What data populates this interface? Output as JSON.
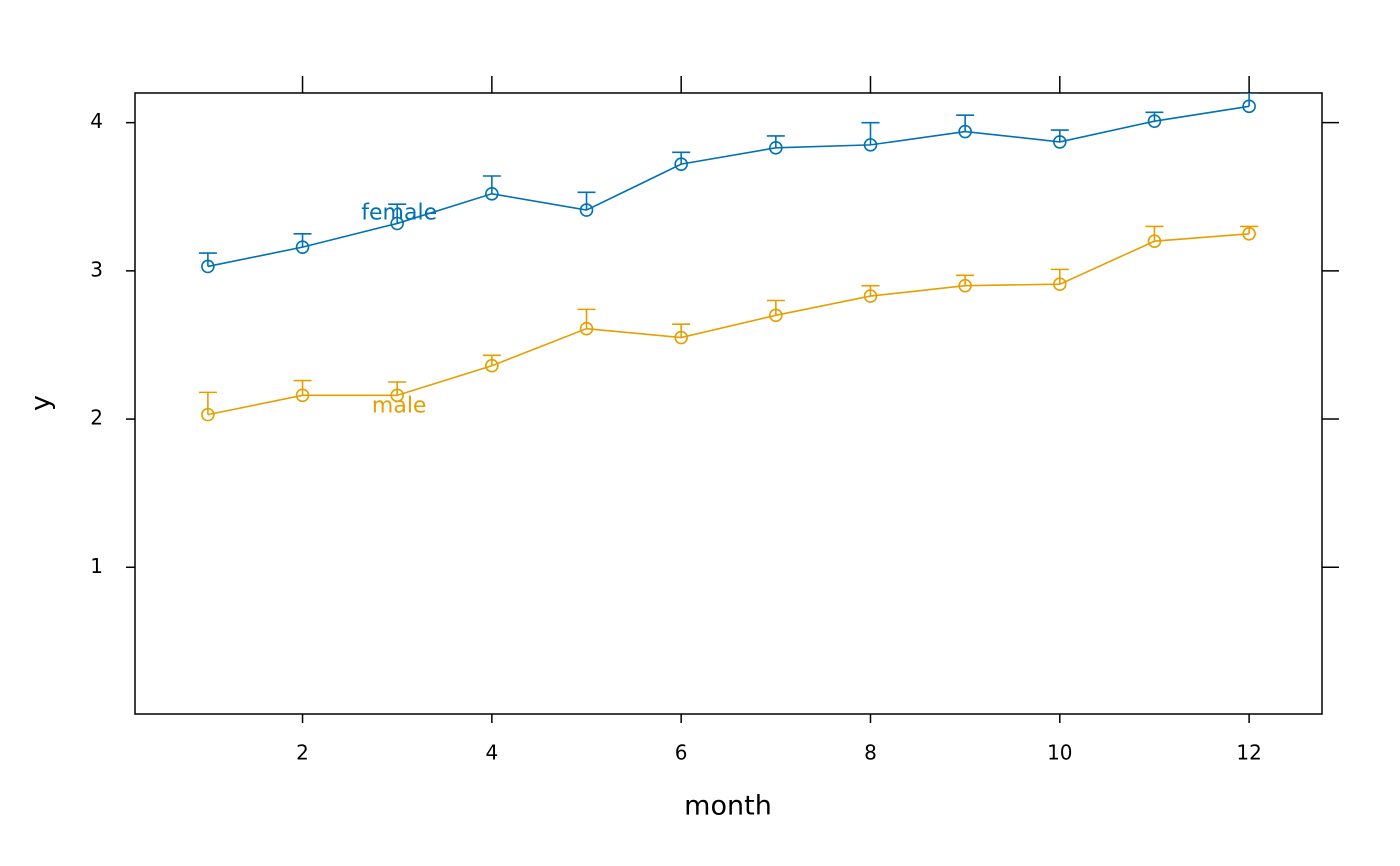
{
  "chart_data": {
    "type": "line",
    "x_label": "month",
    "y_label": "y",
    "x": [
      1,
      2,
      3,
      4,
      5,
      6,
      7,
      8,
      9,
      10,
      11,
      12
    ],
    "series": [
      {
        "name": "female",
        "color": "#0072B2",
        "values": [
          3.03,
          3.16,
          3.32,
          3.52,
          3.41,
          3.72,
          3.83,
          3.85,
          3.94,
          3.87,
          4.01,
          4.11
        ],
        "errors": [
          0.09,
          0.09,
          0.13,
          0.12,
          0.12,
          0.08,
          0.08,
          0.15,
          0.11,
          0.08,
          0.06,
          0.09
        ]
      },
      {
        "name": "male",
        "color": "#E69F00",
        "values": [
          2.03,
          2.16,
          2.16,
          2.36,
          2.61,
          2.55,
          2.7,
          2.83,
          2.9,
          2.91,
          3.2,
          3.25
        ],
        "errors": [
          0.15,
          0.1,
          0.09,
          0.07,
          0.13,
          0.09,
          0.1,
          0.07,
          0.07,
          0.1,
          0.1,
          0.05
        ]
      }
    ],
    "xlim": [
      0.23,
      12.77
    ],
    "xticks": [
      2,
      4,
      6,
      8,
      10,
      12
    ],
    "ylim": [
      0.01,
      4.2
    ],
    "yticks": [
      1,
      2,
      3,
      4
    ]
  }
}
